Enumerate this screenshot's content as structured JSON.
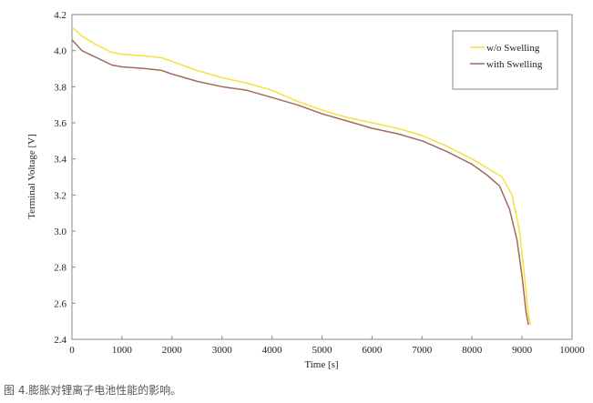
{
  "caption": "图 4.膨胀对锂离子电池性能的影响。",
  "chart_data": {
    "type": "line",
    "xlabel": "Time [s]",
    "ylabel": "Terminal Voltage [V]",
    "xlim": [
      0,
      10000
    ],
    "ylim": [
      2.4,
      4.2
    ],
    "xticks": [
      0,
      1000,
      2000,
      3000,
      4000,
      5000,
      6000,
      7000,
      8000,
      9000,
      10000
    ],
    "xtick_labels": [
      "0",
      "1000",
      "2000",
      "3000",
      "4000",
      "5000",
      "6000",
      "7000",
      "8000",
      "9000",
      "10000"
    ],
    "yticks": [
      2.4,
      2.6,
      2.8,
      3.0,
      3.2,
      3.4,
      3.6,
      3.8,
      4.0,
      4.2
    ],
    "ytick_labels": [
      "2.4",
      "2.6",
      "2.8",
      "3.0",
      "3.2",
      "3.4",
      "3.6",
      "3.8",
      "4.0",
      "4.2"
    ],
    "grid": false,
    "legend_position": "top-right",
    "series": [
      {
        "name": "w/o Swelling",
        "color": "#f2e33c",
        "x": [
          0,
          200,
          500,
          800,
          1000,
          1500,
          1800,
          2000,
          2500,
          3000,
          3500,
          4000,
          4500,
          5000,
          5500,
          6000,
          6500,
          7000,
          7500,
          8000,
          8300,
          8600,
          8800,
          8950,
          9050,
          9120,
          9170
        ],
        "y": [
          4.13,
          4.08,
          4.03,
          3.99,
          3.98,
          3.97,
          3.96,
          3.94,
          3.89,
          3.85,
          3.82,
          3.78,
          3.72,
          3.67,
          3.63,
          3.6,
          3.57,
          3.53,
          3.47,
          3.4,
          3.35,
          3.3,
          3.2,
          3.0,
          2.75,
          2.55,
          2.48
        ]
      },
      {
        "name": "with Swelling",
        "color": "#a36a5c",
        "x": [
          0,
          200,
          500,
          800,
          1000,
          1500,
          1800,
          2000,
          2500,
          3000,
          3500,
          4000,
          4500,
          5000,
          5500,
          6000,
          6500,
          7000,
          7500,
          8000,
          8300,
          8550,
          8750,
          8900,
          9000,
          9080,
          9130
        ],
        "y": [
          4.06,
          4.0,
          3.96,
          3.92,
          3.91,
          3.9,
          3.89,
          3.87,
          3.83,
          3.8,
          3.78,
          3.74,
          3.7,
          3.65,
          3.61,
          3.57,
          3.54,
          3.5,
          3.44,
          3.37,
          3.31,
          3.25,
          3.12,
          2.95,
          2.75,
          2.55,
          2.48
        ]
      }
    ]
  }
}
